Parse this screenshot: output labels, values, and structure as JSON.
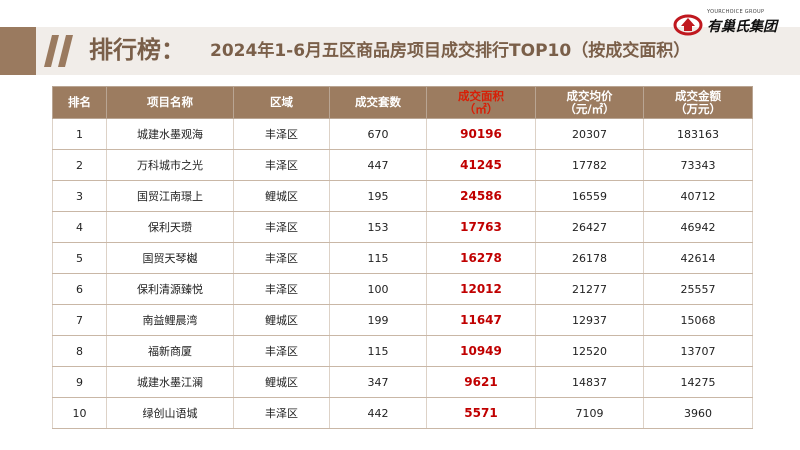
{
  "header": {
    "title_main": "排行榜：",
    "title_sub": "2024年1-6月五区商品房项目成交排行TOP10（按成交面积）"
  },
  "logo": {
    "en": "YOURCHOICE GROUP",
    "cn": "有巢氏集团",
    "accent_color": "#c0181f"
  },
  "colors": {
    "accent": "#9c7c60",
    "highlight": "#c00000"
  },
  "table": {
    "columns": [
      {
        "label": "排名"
      },
      {
        "label": "项目名称"
      },
      {
        "label": "区域"
      },
      {
        "label": "成交套数"
      },
      {
        "label": "成交面积",
        "unit": "（㎡）"
      },
      {
        "label": "成交均价",
        "unit": "（元/㎡）"
      },
      {
        "label": "成交金额",
        "unit": "（万元）"
      }
    ],
    "rows": [
      {
        "rank": "1",
        "name": "城建水墨观海",
        "district": "丰泽区",
        "units": "670",
        "area": "90196",
        "price": "20307",
        "amount": "183163"
      },
      {
        "rank": "2",
        "name": "万科城市之光",
        "district": "丰泽区",
        "units": "447",
        "area": "41245",
        "price": "17782",
        "amount": "73343"
      },
      {
        "rank": "3",
        "name": "国贸江南璟上",
        "district": "鲤城区",
        "units": "195",
        "area": "24586",
        "price": "16559",
        "amount": "40712"
      },
      {
        "rank": "4",
        "name": "保利天瓒",
        "district": "丰泽区",
        "units": "153",
        "area": "17763",
        "price": "26427",
        "amount": "46942"
      },
      {
        "rank": "5",
        "name": "国贸天琴樾",
        "district": "丰泽区",
        "units": "115",
        "area": "16278",
        "price": "26178",
        "amount": "42614"
      },
      {
        "rank": "6",
        "name": "保利清源臻悦",
        "district": "丰泽区",
        "units": "100",
        "area": "12012",
        "price": "21277",
        "amount": "25557"
      },
      {
        "rank": "7",
        "name": "南益鲤晨湾",
        "district": "鲤城区",
        "units": "199",
        "area": "11647",
        "price": "12937",
        "amount": "15068"
      },
      {
        "rank": "8",
        "name": "福新商厦",
        "district": "丰泽区",
        "units": "115",
        "area": "10949",
        "price": "12520",
        "amount": "13707"
      },
      {
        "rank": "9",
        "name": "城建水墨江澜",
        "district": "鲤城区",
        "units": "347",
        "area": "9621",
        "price": "14837",
        "amount": "14275"
      },
      {
        "rank": "10",
        "name": "绿创山语城",
        "district": "丰泽区",
        "units": "442",
        "area": "5571",
        "price": "7109",
        "amount": "3960"
      }
    ]
  }
}
